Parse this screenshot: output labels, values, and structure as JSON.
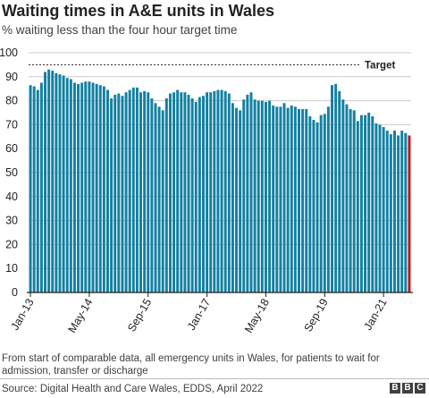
{
  "title": "Waiting times in A&E units in Wales",
  "subtitle": "% waiting less than the four hour target time",
  "note": "From start of comparable data, all emergency units in Wales, for patients to wait for admission, transfer or discharge",
  "source": "Source: Digital Health and Care Wales, EDDS, April 2022",
  "logo": [
    "B",
    "B",
    "C"
  ],
  "colors": {
    "bar": "#1380A1",
    "latest_bar": "#BB1919",
    "grid": "#CCCCCC",
    "target_line": "#222222"
  },
  "chart_data": {
    "type": "bar",
    "title": "Waiting times in A&E units in Wales",
    "ylim": [
      0,
      100
    ],
    "yticks": [
      "0",
      "10",
      "20",
      "30",
      "40",
      "50",
      "60",
      "70",
      "80",
      "90",
      "100"
    ],
    "xtick_labels": [
      "Jan-13",
      "May-14",
      "Sep-15",
      "Jan-17",
      "May-18",
      "Sep-19",
      "Jan-21"
    ],
    "xtick_indices": [
      0,
      16,
      32,
      48,
      64,
      80,
      96
    ],
    "target": {
      "value": 95,
      "label": "Target"
    },
    "values": [
      86.5,
      86,
      84.5,
      87.5,
      92,
      93,
      92.5,
      91.5,
      91,
      90.5,
      89.5,
      89,
      87.5,
      87,
      87.5,
      88,
      88,
      87.5,
      87,
      86.5,
      86,
      84.5,
      81,
      82.5,
      83,
      82,
      83.5,
      84.5,
      85.5,
      85.5,
      83.5,
      84,
      83.5,
      81,
      79,
      77.5,
      76,
      81,
      83,
      83.5,
      84.5,
      83.5,
      83.5,
      82.5,
      81,
      79.5,
      81.5,
      82,
      83.5,
      83.5,
      84,
      84.5,
      84.5,
      84,
      83,
      79,
      77,
      76,
      80.5,
      82.5,
      83.5,
      80.5,
      80,
      80,
      79.5,
      80,
      78,
      77.5,
      77.5,
      79,
      77,
      78,
      77.5,
      76.5,
      76.5,
      76.5,
      73.5,
      72,
      71,
      74,
      74.5,
      77.5,
      86.5,
      87,
      84,
      80.5,
      78.5,
      76.5,
      76,
      71.5,
      74,
      74,
      75,
      73.5,
      70.5,
      70,
      69,
      67.5,
      66,
      67.5,
      65.5,
      67.5,
      66.5,
      65.5
    ],
    "highlight_last": true
  }
}
